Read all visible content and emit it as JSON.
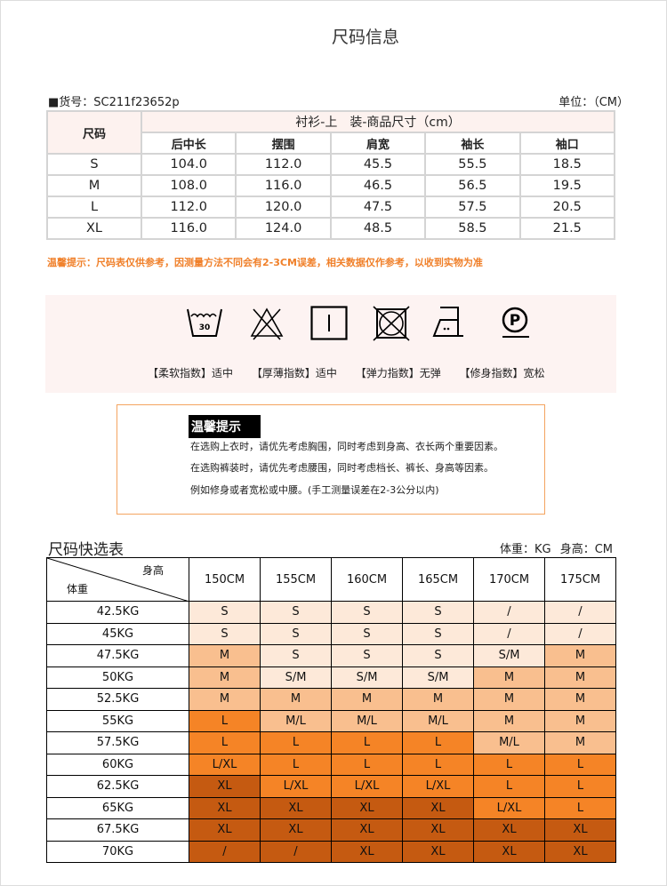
{
  "title": "尺码信息",
  "article_number": "■货号：SC211f23652p",
  "unit": "单位：（CM）",
  "size_table": {
    "size_header": "尺码",
    "caption": "衬衫-上　装-商品尺寸（cm）",
    "columns": [
      "后中长",
      "摆围",
      "肩宽",
      "袖长",
      "袖口"
    ],
    "rows": [
      {
        "size": "S",
        "values": [
          "104.0",
          "112.0",
          "45.5",
          "55.5",
          "18.5"
        ]
      },
      {
        "size": "M",
        "values": [
          "108.0",
          "116.0",
          "46.5",
          "56.5",
          "19.5"
        ]
      },
      {
        "size": "L",
        "values": [
          "112.0",
          "120.0",
          "47.5",
          "57.5",
          "20.5"
        ]
      },
      {
        "size": "XL",
        "values": [
          "116.0",
          "124.0",
          "48.5",
          "58.5",
          "21.5"
        ]
      }
    ]
  },
  "warning": "温馨提示：尺码表仅供参考，因测量方法不同会有2-3CM误差，相关数据仅作参考，以收到实物为准",
  "care": {
    "icons": [
      "wash-30-icon",
      "no-bleach-icon",
      "drip-dry-icon",
      "no-tumble-dry-icon",
      "iron-medium-icon",
      "dry-clean-p-icon"
    ],
    "wash_temp": "30",
    "dry_clean_letter": "P",
    "labels": [
      "【柔软指数】适中",
      "【厚薄指数】适中",
      "【弹力指数】无弹",
      "【修身指数】宽松"
    ]
  },
  "tips": {
    "title": "温馨提示",
    "lines": [
      "在选购上衣时，请优先考虑胸围，同时考虑到身高、衣长两个重要因素。",
      "在选购裤装时，请优先考虑腰围，同时考虑档长、裤长、身高等因素。",
      "例如修身或者宽松或中腰。(手工测量误差在2-3公分以内)"
    ]
  },
  "quick": {
    "title": "尺码快选表",
    "unit": "体重：KG 身高：CM",
    "corner_height": "身高",
    "corner_weight": "体重",
    "heights": [
      "150CM",
      "155CM",
      "160CM",
      "165CM",
      "170CM",
      "175CM"
    ],
    "palette": [
      "#fde9d9",
      "#f9bf8f",
      "#f58426",
      "#c55a11"
    ],
    "rows": [
      {
        "weight": "42.5KG",
        "cells": [
          "S",
          "S",
          "S",
          "S",
          "/",
          "/"
        ],
        "levels": [
          0,
          0,
          0,
          0,
          0,
          0
        ]
      },
      {
        "weight": "45KG",
        "cells": [
          "S",
          "S",
          "S",
          "S",
          "/",
          "/"
        ],
        "levels": [
          0,
          0,
          0,
          0,
          0,
          0
        ]
      },
      {
        "weight": "47.5KG",
        "cells": [
          "M",
          "S",
          "S",
          "S",
          "S/M",
          "M"
        ],
        "levels": [
          1,
          0,
          0,
          0,
          0,
          1
        ]
      },
      {
        "weight": "50KG",
        "cells": [
          "M",
          "S/M",
          "S/M",
          "S/M",
          "M",
          "M"
        ],
        "levels": [
          1,
          0,
          0,
          0,
          1,
          1
        ]
      },
      {
        "weight": "52.5KG",
        "cells": [
          "M",
          "M",
          "M",
          "M",
          "M",
          "M"
        ],
        "levels": [
          1,
          1,
          1,
          1,
          1,
          1
        ]
      },
      {
        "weight": "55KG",
        "cells": [
          "L",
          "M/L",
          "M/L",
          "M/L",
          "M",
          "M"
        ],
        "levels": [
          2,
          1,
          1,
          1,
          1,
          1
        ]
      },
      {
        "weight": "57.5KG",
        "cells": [
          "L",
          "L",
          "L",
          "L",
          "M/L",
          "M"
        ],
        "levels": [
          2,
          2,
          2,
          2,
          1,
          1
        ]
      },
      {
        "weight": "60KG",
        "cells": [
          "L/XL",
          "L",
          "L",
          "L",
          "L",
          "L"
        ],
        "levels": [
          2,
          2,
          2,
          2,
          2,
          2
        ]
      },
      {
        "weight": "62.5KG",
        "cells": [
          "XL",
          "L/XL",
          "L/XL",
          "L/XL",
          "L",
          "L"
        ],
        "levels": [
          3,
          2,
          2,
          2,
          2,
          2
        ]
      },
      {
        "weight": "65KG",
        "cells": [
          "XL",
          "XL",
          "XL",
          "XL",
          "L/XL",
          "L"
        ],
        "levels": [
          3,
          3,
          3,
          3,
          2,
          2
        ]
      },
      {
        "weight": "67.5KG",
        "cells": [
          "XL",
          "XL",
          "XL",
          "XL",
          "XL",
          "XL"
        ],
        "levels": [
          3,
          3,
          3,
          3,
          3,
          3
        ]
      },
      {
        "weight": "70KG",
        "cells": [
          "/",
          "/",
          "XL",
          "XL",
          "XL",
          "XL"
        ],
        "levels": [
          3,
          3,
          3,
          3,
          3,
          3
        ]
      }
    ]
  }
}
